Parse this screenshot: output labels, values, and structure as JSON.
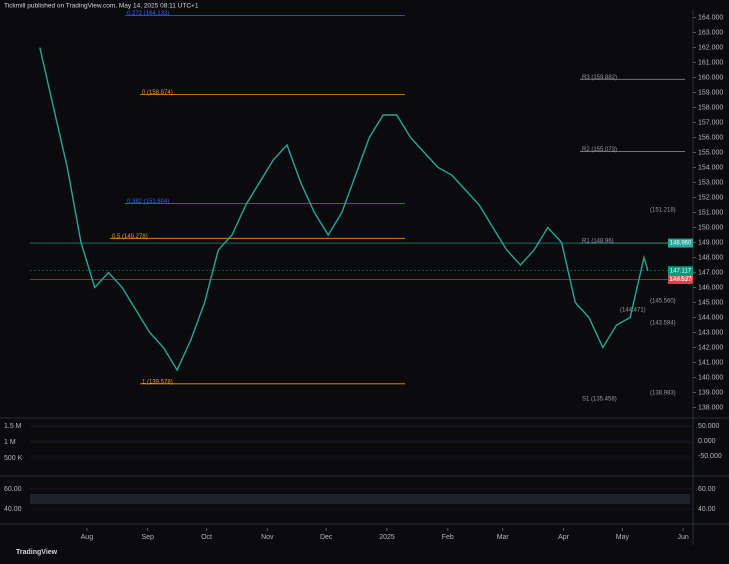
{
  "header": {
    "publisher": "Tickmill published on TradingView.com, May 14, 2025 08:11 UTC+1"
  },
  "chart_data": {
    "type": "line",
    "x": [
      7,
      14,
      21,
      28,
      35,
      42,
      49,
      56,
      63,
      70,
      77,
      84,
      91,
      98,
      105,
      112,
      119,
      126,
      133,
      140,
      147,
      154,
      161,
      168,
      175,
      182,
      189,
      196,
      203,
      210,
      217,
      224,
      231,
      238,
      245,
      252,
      259,
      266,
      273,
      280,
      287,
      294,
      301,
      308,
      315,
      317
    ],
    "series": [
      {
        "color": "#26a69a",
        "values": [
          162,
          158,
          154,
          149,
          146,
          147,
          146,
          144.5,
          143,
          142,
          140.5,
          142.5,
          145,
          148.5,
          149.5,
          151.5,
          153,
          154.5,
          155.5,
          153,
          151,
          149.5,
          151,
          153.5,
          156,
          157.5,
          157.5,
          156,
          155,
          154,
          153.5,
          152.5,
          151.5,
          150,
          148.5,
          147.5,
          148.5,
          150,
          149,
          145,
          144,
          142,
          143.5,
          144,
          148,
          147.117
        ]
      }
    ],
    "xlim": [
      2,
      340
    ],
    "xticks": [
      {
        "value": 31,
        "label": "Aug"
      },
      {
        "value": 62,
        "label": "Sep"
      },
      {
        "value": 92,
        "label": "Oct"
      },
      {
        "value": 123,
        "label": "Nov"
      },
      {
        "value": 153,
        "label": "Dec"
      },
      {
        "value": 184,
        "label": "2025"
      },
      {
        "value": 215,
        "label": "Feb"
      },
      {
        "value": 243,
        "label": "Mar"
      },
      {
        "value": 274,
        "label": "Apr"
      },
      {
        "value": 304,
        "label": "May"
      },
      {
        "value": 335,
        "label": "Jun"
      }
    ],
    "ylim": [
      137.5,
      164.5
    ],
    "yticks": [
      {
        "value": 138,
        "label": "138.000"
      },
      {
        "value": 139,
        "label": "139.000"
      },
      {
        "value": 140,
        "label": "140.000"
      },
      {
        "value": 141,
        "label": "141.000"
      },
      {
        "value": 142,
        "label": "142.000"
      },
      {
        "value": 143,
        "label": "143.000"
      },
      {
        "value": 144,
        "label": "144.000"
      },
      {
        "value": 145,
        "label": "145.000"
      },
      {
        "value": 146,
        "label": "146.000"
      },
      {
        "value": 147,
        "label": "147.000"
      },
      {
        "value": 148,
        "label": "148.000"
      },
      {
        "value": 149,
        "label": "149.000"
      },
      {
        "value": 150,
        "label": "150.000"
      },
      {
        "value": 151,
        "label": "151.000"
      },
      {
        "value": 152,
        "label": "152.000"
      },
      {
        "value": 153,
        "label": "153.000"
      },
      {
        "value": 154,
        "label": "154.000"
      },
      {
        "value": 155,
        "label": "155.000"
      },
      {
        "value": 156,
        "label": "156.000"
      },
      {
        "value": 157,
        "label": "157.000"
      },
      {
        "value": 158,
        "label": "158.000"
      },
      {
        "value": 159,
        "label": "159.000"
      },
      {
        "value": 160,
        "label": "160.000"
      },
      {
        "value": 161,
        "label": "161.000"
      },
      {
        "value": 162,
        "label": "162.000"
      },
      {
        "value": 163,
        "label": "163.000"
      },
      {
        "value": 164,
        "label": "164.000"
      }
    ],
    "levels": [
      {
        "value": 164.133,
        "label": "0.272 (164.133)",
        "color": "#2962ff"
      },
      {
        "value": 158.874,
        "label": "0 (158.874)",
        "color": "#f7931a"
      },
      {
        "value": 151.604,
        "label": "0.382 (151.604)",
        "color": "#2962ff"
      },
      {
        "value": 149.278,
        "label": "0.5 (149.278)",
        "color": "#f7931a"
      },
      {
        "value": 139.578,
        "label": "1 (139.578)",
        "color": "#f7931a"
      },
      {
        "value": 159.882,
        "label": "R3 (159.882)",
        "color": "#9598a1"
      },
      {
        "value": 155.073,
        "label": "R2 (155.073)",
        "color": "#9598a1"
      },
      {
        "value": 148.96,
        "label": "R1 (148.96)",
        "color": "#9598a1"
      }
    ],
    "annotations": [
      "S1 (135.458)",
      "(151.218)",
      "(145.560)",
      "(144.471)",
      "(143.584)",
      "(138.983)"
    ],
    "price_tags": [
      {
        "value": 148.96,
        "label": "148.960",
        "color": "#26a69a"
      },
      {
        "value": 147.117,
        "label": "147.117",
        "color": "#089981"
      },
      {
        "value": 146.537,
        "label": "146.537",
        "color": "#f23645"
      }
    ],
    "countdown": "13:48:23"
  },
  "volume_panel": {
    "ylim": [
      0,
      1700000
    ],
    "yticks": [
      {
        "value": 1500000,
        "label": "1.5 M"
      },
      {
        "value": 1000000,
        "label": "1 M"
      },
      {
        "value": 500000,
        "label": "500 K"
      }
    ]
  },
  "oscillator_panel": {
    "ylim": [
      -70,
      70
    ],
    "yticks": [
      {
        "value": 50,
        "label": "50.000"
      },
      {
        "value": 0,
        "label": "0.000"
      },
      {
        "value": -50,
        "label": "-50.000"
      }
    ]
  },
  "stoch_panel": {
    "ylim": [
      20,
      80
    ],
    "yticks": [
      {
        "value": 60,
        "label": "60.00"
      },
      {
        "value": 40,
        "label": "40.00"
      }
    ]
  },
  "footer": {
    "brand": "TradingView"
  }
}
